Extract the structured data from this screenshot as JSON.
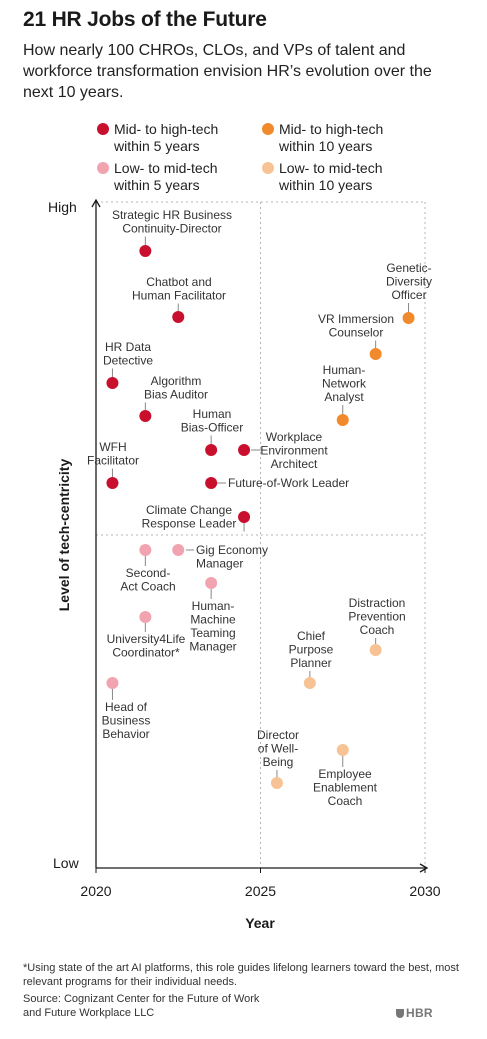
{
  "header": {
    "title": "21 HR Jobs of the Future",
    "subtitle": "How nearly 100 CHROs, CLOs, and VPs of talent and workforce transformation envision HR’s evolution over the next 10 years."
  },
  "legend": [
    {
      "label": "Mid- to high-tech\nwithin 5 years",
      "color": "#c8102e"
    },
    {
      "label": "Mid- to high-tech\nwithin 10 years",
      "color": "#f08a2c"
    },
    {
      "label": "Low- to mid-tech\nwithin 5 years",
      "color": "#f2a3b0"
    },
    {
      "label": "Low- to mid-tech\nwithin 10 years",
      "color": "#f7c394"
    }
  ],
  "chart_data": {
    "type": "scatter",
    "xlabel": "Year",
    "ylabel": "Level of tech-centricity",
    "x_ticks": [
      "2020",
      "2025",
      "2030"
    ],
    "xlim": [
      2020,
      2030
    ],
    "y_ticks": [
      "High",
      "Low"
    ],
    "grid": "dotted lines at 2025 and at the midpoint of tech-centricity",
    "points": [
      {
        "label": "Strategic HR Business\nContinuity-Director",
        "x": 2021.5,
        "y": "upper",
        "category": 0
      },
      {
        "label": "Chatbot and\nHuman Facilitator",
        "x": 2022.5,
        "y": "upper",
        "category": 0
      },
      {
        "label": "HR Data\nDetective",
        "x": 2020.5,
        "y": "upper",
        "category": 0
      },
      {
        "label": "Algorithm\nBias Auditor",
        "x": 2021.5,
        "y": "upper",
        "category": 0
      },
      {
        "label": "Human\nBias-Officer",
        "x": 2023.5,
        "y": "upper",
        "category": 0
      },
      {
        "label": "Workplace\nEnvironment\nArchitect",
        "x": 2024.5,
        "y": "upper",
        "category": 0
      },
      {
        "label": "WFH\nFacilitator",
        "x": 2020.5,
        "y": "upper",
        "category": 0
      },
      {
        "label": "Future-of-Work Leader",
        "x": 2023.5,
        "y": "upper",
        "category": 0
      },
      {
        "label": "Climate Change\nResponse Leader",
        "x": 2024.5,
        "y": "upper",
        "category": 0
      },
      {
        "label": "Genetic-\nDiversity\nOfficer",
        "x": 2029.5,
        "y": "upper",
        "category": 1
      },
      {
        "label": "VR Immersion\nCounselor",
        "x": 2028.5,
        "y": "upper",
        "category": 1
      },
      {
        "label": "Human-\nNetwork\nAnalyst",
        "x": 2027.5,
        "y": "upper",
        "category": 1
      },
      {
        "label": "Gig Economy\nManager",
        "x": 2022.5,
        "y": "lower",
        "category": 2
      },
      {
        "label": "Second-\nAct Coach",
        "x": 2021.5,
        "y": "lower",
        "category": 2
      },
      {
        "label": "Human-\nMachine\nTeaming\nManager",
        "x": 2023.5,
        "y": "lower",
        "category": 2
      },
      {
        "label": "University4Life\nCoordinator*",
        "x": 2021.5,
        "y": "lower",
        "category": 2
      },
      {
        "label": "Head of\nBusiness\nBehavior",
        "x": 2020.5,
        "y": "lower",
        "category": 2
      },
      {
        "label": "Distraction\nPrevention\nCoach",
        "x": 2028.5,
        "y": "lower",
        "category": 3
      },
      {
        "label": "Chief\nPurpose\nPlanner",
        "x": 2026.5,
        "y": "lower",
        "category": 3
      },
      {
        "label": "Employee\nEnablement\nCoach",
        "x": 2027.5,
        "y": "lower",
        "category": 3
      },
      {
        "label": "Director\nof Well-\nBeing",
        "x": 2025.5,
        "y": "lower",
        "category": 3
      }
    ]
  },
  "footnote": "*Using state of the art AI platforms, this role guides lifelong learners toward the best, most relevant programs for their individual needs.",
  "source": "Source: Cognizant Center for the Future of Work\nand Future Workplace LLC",
  "brand": "HBR"
}
